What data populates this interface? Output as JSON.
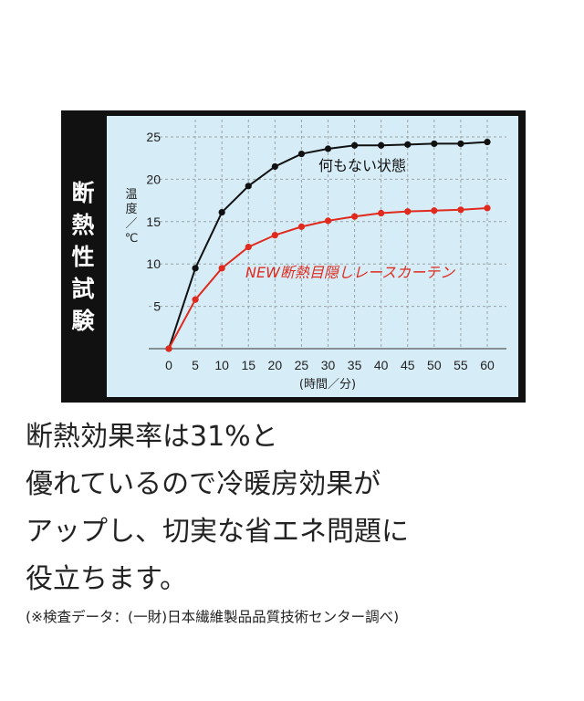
{
  "chart_data": {
    "type": "line",
    "side_title": [
      "断",
      "熱",
      "性",
      "試",
      "験"
    ],
    "ylabel": [
      "温",
      "度",
      "／",
      "℃"
    ],
    "xlabel": "(時間／分)",
    "x": [
      0,
      5,
      10,
      15,
      20,
      25,
      30,
      35,
      40,
      45,
      50,
      55,
      60
    ],
    "xticks": [
      "0",
      "5",
      "10",
      "15",
      "20",
      "25",
      "30",
      "35",
      "40",
      "45",
      "50",
      "55",
      "60"
    ],
    "yticks": [
      "5",
      "10",
      "15",
      "20",
      "25"
    ],
    "xlim": [
      -2,
      63
    ],
    "ylim": [
      0,
      26
    ],
    "grid": true,
    "background_color": "#d6ecf6",
    "series": [
      {
        "name": "何もない状態",
        "color": "#111111",
        "values": [
          0,
          9.5,
          16.1,
          19.2,
          21.5,
          23.0,
          23.6,
          24.0,
          24.0,
          24.1,
          24.2,
          24.2,
          24.4
        ]
      },
      {
        "name": "NEW断熱目隠しレースカーテン",
        "color": "#e02a1e",
        "values": [
          0,
          5.8,
          9.5,
          12.0,
          13.4,
          14.4,
          15.1,
          15.6,
          16.0,
          16.2,
          16.3,
          16.4,
          16.6
        ]
      }
    ]
  },
  "text": {
    "lines": [
      "断熱効果率は31%と",
      "優れているので冷暖房効果が",
      "アップし、切実な省エネ問題に",
      "役立ちます。"
    ],
    "footnote": "(※検査データ：(一財)日本繊維製品品質技術センター調べ)"
  }
}
